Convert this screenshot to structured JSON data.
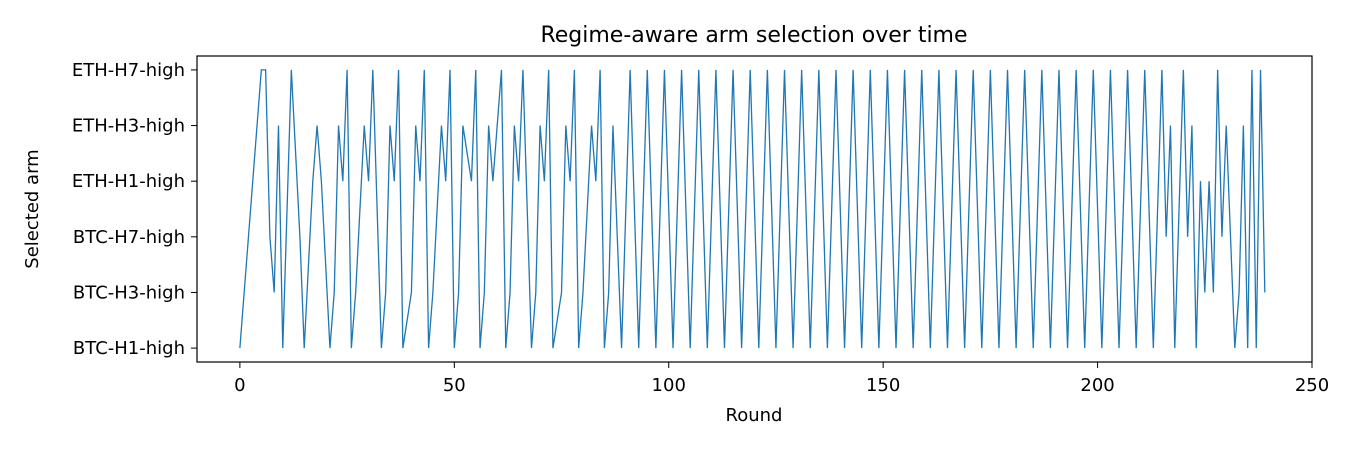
{
  "chart_data": {
    "type": "line",
    "title": "Regime-aware arm selection over time",
    "xlabel": "Round",
    "ylabel": "Selected arm",
    "xlim": [
      -10,
      250
    ],
    "ylim": [
      -0.25,
      5.25
    ],
    "xticks": [
      0,
      50,
      100,
      150,
      200,
      250
    ],
    "categories": [
      "BTC-H1-high",
      "BTC-H3-high",
      "BTC-H7-high",
      "ETH-H1-high",
      "ETH-H3-high",
      "ETH-H7-high"
    ],
    "grid": false,
    "line_color": "#1f77b4",
    "series": [
      {
        "x": [
          0,
          5,
          6,
          7,
          8,
          9,
          10,
          12,
          14,
          15,
          17,
          18,
          19,
          21,
          22,
          23,
          24,
          25,
          26,
          27,
          29,
          30,
          31,
          33,
          34,
          35,
          36,
          37,
          38,
          40,
          41,
          42,
          43,
          44,
          45,
          47,
          48,
          49,
          50,
          51,
          52,
          54,
          55,
          56,
          57,
          58,
          59,
          61,
          62,
          63,
          64,
          65,
          66,
          68,
          69,
          70,
          71,
          72,
          73,
          75,
          76,
          77,
          78,
          79,
          80,
          82,
          83,
          84,
          85,
          86,
          87,
          89,
          91,
          93,
          95,
          97,
          99,
          101,
          103,
          105,
          107,
          109,
          111,
          113,
          115,
          117,
          119,
          121,
          123,
          125,
          127,
          129,
          131,
          133,
          135,
          137,
          139,
          141,
          143,
          145,
          147,
          149,
          151,
          153,
          155,
          157,
          159,
          161,
          163,
          165,
          167,
          169,
          171,
          173,
          175,
          177,
          179,
          181,
          183,
          185,
          187,
          189,
          191,
          193,
          195,
          197,
          199,
          201,
          203,
          205,
          207,
          209,
          211,
          213,
          215,
          216,
          217,
          218,
          220,
          221,
          222,
          223,
          224,
          225,
          226,
          227,
          228,
          229,
          230,
          232,
          233,
          234,
          235,
          236,
          237,
          238,
          239
        ],
        "y": [
          0,
          5,
          5,
          2,
          1,
          4,
          0,
          5,
          2,
          0,
          3,
          4,
          3,
          0,
          1,
          4,
          3,
          5,
          0,
          1,
          4,
          3,
          5,
          0,
          1,
          4,
          3,
          5,
          0,
          1,
          4,
          3,
          5,
          0,
          1,
          4,
          3,
          5,
          0,
          1,
          4,
          3,
          5,
          0,
          1,
          4,
          3,
          5,
          0,
          1,
          4,
          3,
          5,
          0,
          1,
          4,
          3,
          5,
          0,
          1,
          4,
          3,
          5,
          0,
          1,
          4,
          3,
          5,
          0,
          1,
          4,
          0,
          5,
          0,
          5,
          0,
          5,
          0,
          5,
          0,
          5,
          0,
          5,
          0,
          5,
          0,
          5,
          0,
          5,
          0,
          5,
          0,
          5,
          0,
          5,
          0,
          5,
          0,
          5,
          0,
          5,
          0,
          5,
          0,
          5,
          0,
          5,
          0,
          5,
          0,
          5,
          0,
          5,
          0,
          5,
          0,
          5,
          0,
          5,
          0,
          5,
          0,
          5,
          0,
          5,
          0,
          5,
          0,
          5,
          0,
          5,
          0,
          5,
          0,
          5,
          2,
          4,
          0,
          5,
          2,
          4,
          0,
          3,
          1,
          3,
          1,
          5,
          2,
          4,
          0,
          1,
          4,
          0,
          5,
          0,
          5,
          1
        ]
      }
    ]
  }
}
